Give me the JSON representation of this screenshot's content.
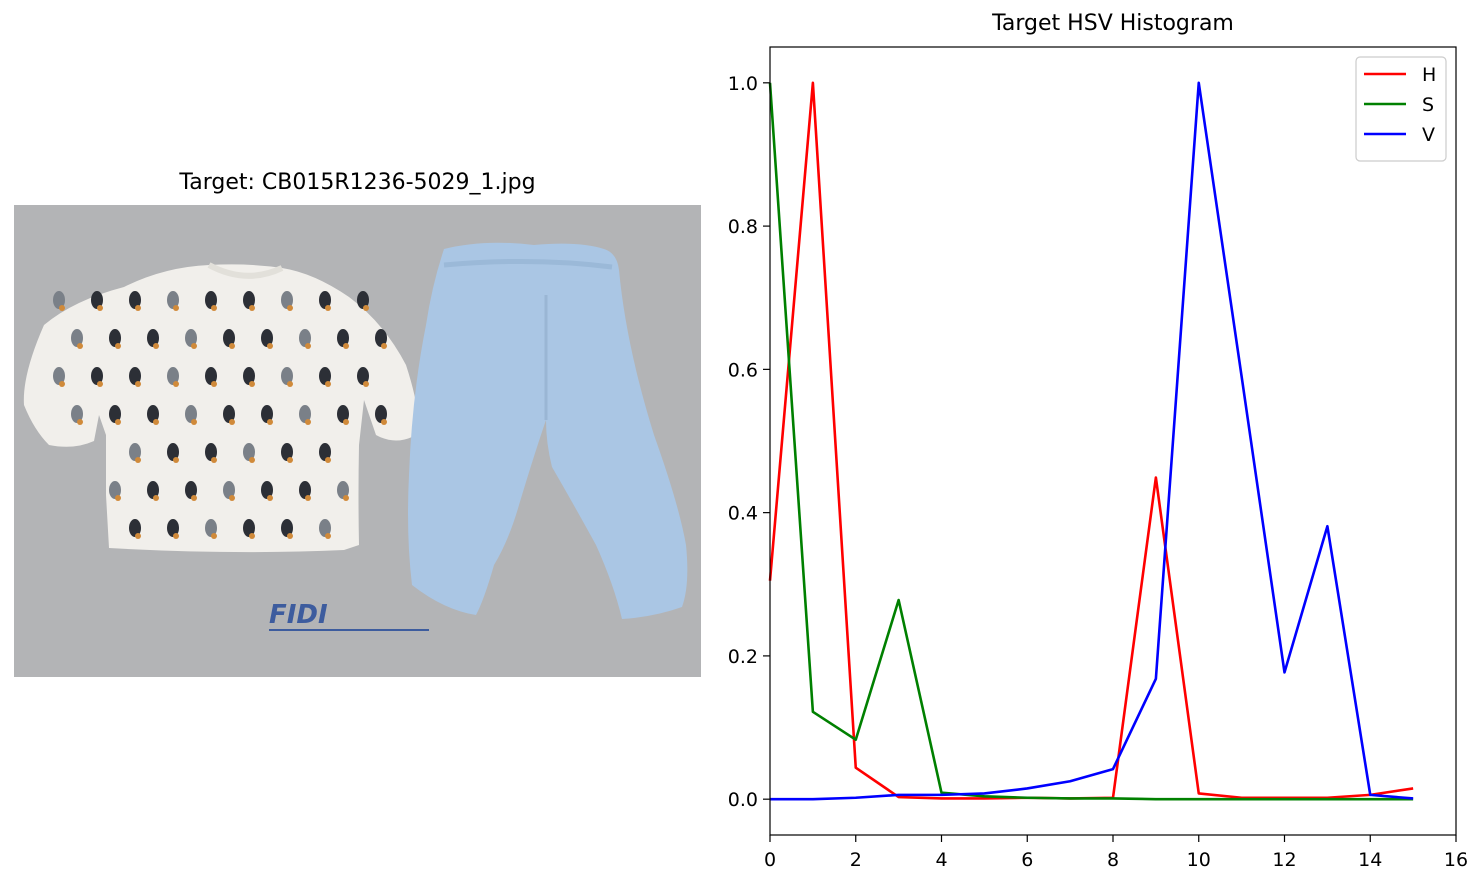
{
  "left_panel": {
    "title": "Target: CB015R1236-5029_1.jpg",
    "image_colors": {
      "background": "#b3b4b6",
      "shirt": "#f1efeb",
      "pants": "#aac6e4",
      "watermark": "#3d5c9e"
    }
  },
  "chart_data": {
    "type": "line",
    "title": "Target HSV Histogram",
    "xlabel": "",
    "ylabel": "",
    "xlim": [
      0,
      16
    ],
    "ylim": [
      -0.05,
      1.05
    ],
    "xticks": [
      0,
      2,
      4,
      6,
      8,
      10,
      12,
      14,
      16
    ],
    "yticks": [
      0.0,
      0.2,
      0.4,
      0.6,
      0.8,
      1.0
    ],
    "x": [
      0,
      1,
      2,
      3,
      4,
      5,
      6,
      7,
      8,
      9,
      10,
      11,
      12,
      13,
      14,
      15
    ],
    "legend_position": "top-right",
    "grid": false,
    "series": [
      {
        "name": "H",
        "color": "#ff0000",
        "values": [
          0.305,
          1.0,
          0.044,
          0.003,
          0.001,
          0.001,
          0.002,
          0.001,
          0.002,
          0.449,
          0.008,
          0.002,
          0.002,
          0.002,
          0.006,
          0.015
        ]
      },
      {
        "name": "S",
        "color": "#008000",
        "values": [
          1.0,
          0.122,
          0.083,
          0.278,
          0.009,
          0.004,
          0.002,
          0.001,
          0.001,
          0.0,
          0.0,
          0.0,
          0.0,
          0.0,
          0.0,
          0.0
        ]
      },
      {
        "name": "V",
        "color": "#0000ff",
        "values": [
          0.0,
          0.0,
          0.002,
          0.006,
          0.006,
          0.008,
          0.015,
          0.025,
          0.042,
          0.168,
          1.0,
          0.59,
          0.177,
          0.381,
          0.006,
          0.001
        ]
      }
    ]
  }
}
